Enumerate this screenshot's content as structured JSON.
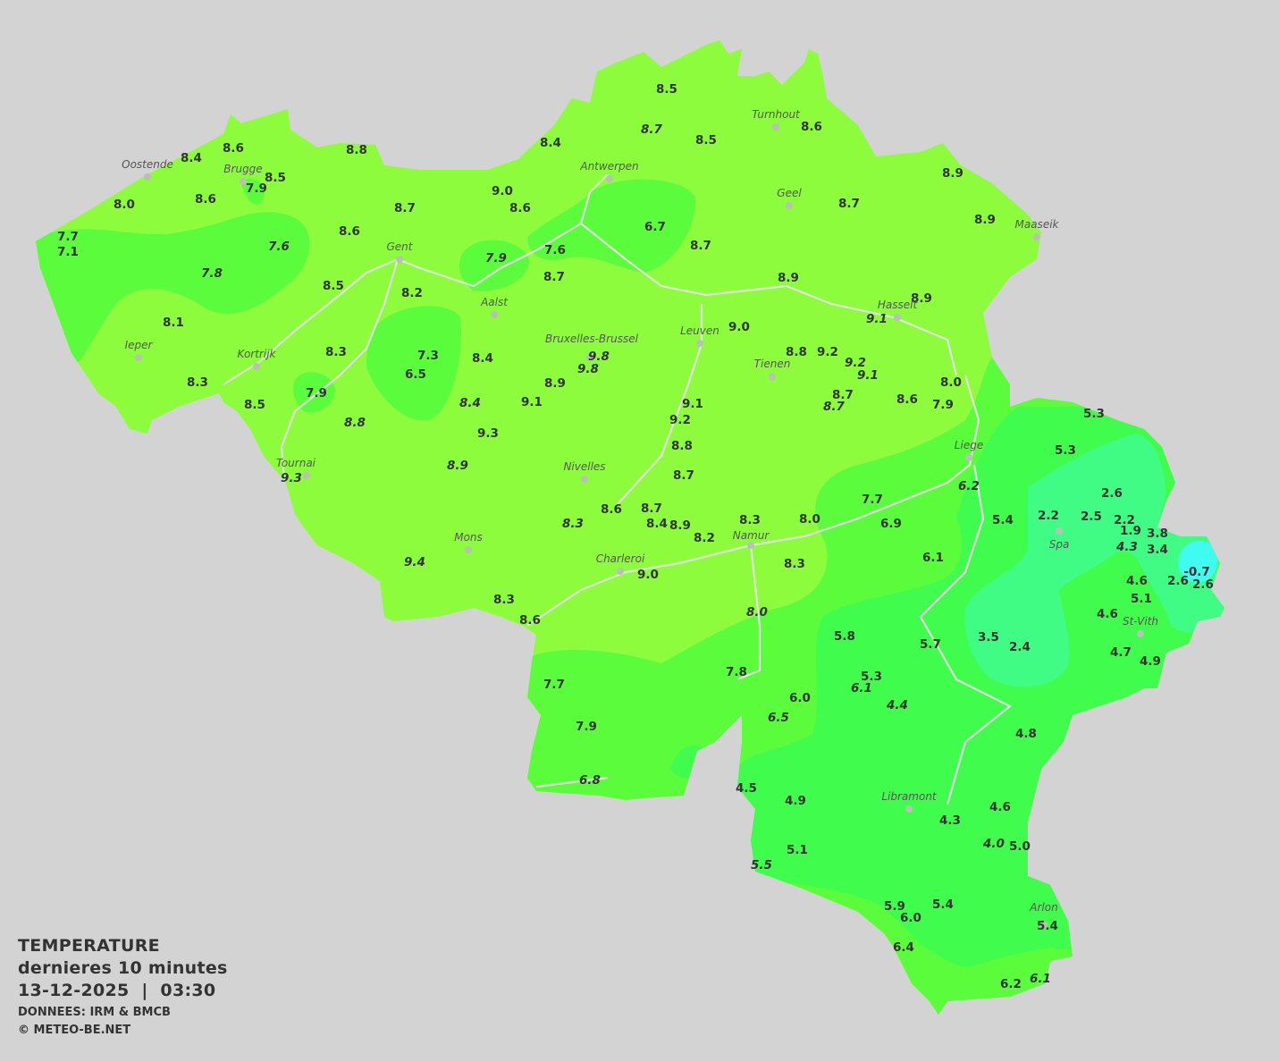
{
  "legend": {
    "title": "TEMPERATURE",
    "period": "dernieres 10 minutes",
    "datetime": "13-12-2025  |  03:30",
    "source": "DONNEES: IRM & BMCB",
    "copyright": "© METEO-BE.NET"
  },
  "colors": {
    "background": "#d3d3d3",
    "zone_8_10": "#8cfc3c",
    "zone_6_8": "#5afc3c",
    "zone_4_6": "#40fc4c",
    "zone_2_4": "#40fc84",
    "zone_below_0": "#40fcf0",
    "rivers": "#e6e6e6"
  },
  "cities": [
    "Oostende",
    "Brugge",
    "Gent",
    "Antwerpen",
    "Turnhout",
    "Geel",
    "Maaseik",
    "Hasselt",
    "Aalst",
    "Ieper",
    "Kortrijk",
    "Bruxelles-Brussel",
    "Leuven",
    "Tienen",
    "Tournai",
    "Liege",
    "Nivelles",
    "Spa",
    "Mons",
    "Namur",
    "Charleroi",
    "St-Vith",
    "Libramont",
    "Arlon"
  ],
  "stations": [
    {
      "v": "8.5"
    },
    {
      "v": "8.7",
      "i": true
    },
    {
      "v": "8.5"
    },
    {
      "v": "8.6"
    },
    {
      "v": "8.4"
    },
    {
      "v": "8.8"
    },
    {
      "v": "8.6"
    },
    {
      "v": "8.4"
    },
    {
      "v": "8.5"
    },
    {
      "v": "7.9"
    },
    {
      "v": "8.6"
    },
    {
      "v": "8.0"
    },
    {
      "v": "9.0"
    },
    {
      "v": "8.6"
    },
    {
      "v": "8.7"
    },
    {
      "v": "8.7"
    },
    {
      "v": "8.9"
    },
    {
      "v": "8.9"
    },
    {
      "v": "7.7"
    },
    {
      "v": "7.1"
    },
    {
      "v": "7.6",
      "i": true
    },
    {
      "v": "7.8",
      "i": true
    },
    {
      "v": "8.6"
    },
    {
      "v": "6.7"
    },
    {
      "v": "8.7"
    },
    {
      "v": "7.6"
    },
    {
      "v": "7.9",
      "i": true
    },
    {
      "v": "8.7"
    },
    {
      "v": "8.9"
    },
    {
      "v": "8.9"
    },
    {
      "v": "9.1",
      "i": true
    },
    {
      "v": "8.5"
    },
    {
      "v": "8.2"
    },
    {
      "v": "8.1"
    },
    {
      "v": "9.0"
    },
    {
      "v": "8.3"
    },
    {
      "v": "7.3"
    },
    {
      "v": "8.4"
    },
    {
      "v": "9.8",
      "i": true
    },
    {
      "v": "9.8",
      "i": true
    },
    {
      "v": "8.8"
    },
    {
      "v": "9.2"
    },
    {
      "v": "9.2",
      "i": true
    },
    {
      "v": "9.1",
      "i": true
    },
    {
      "v": "8.3"
    },
    {
      "v": "6.5"
    },
    {
      "v": "8.9"
    },
    {
      "v": "7.9"
    },
    {
      "v": "8.0"
    },
    {
      "v": "8.7"
    },
    {
      "v": "8.7",
      "i": true
    },
    {
      "v": "8.6"
    },
    {
      "v": "7.9"
    },
    {
      "v": "9.1"
    },
    {
      "v": "8.5"
    },
    {
      "v": "8.4",
      "i": true
    },
    {
      "v": "9.1"
    },
    {
      "v": "8.8",
      "i": true
    },
    {
      "v": "9.2"
    },
    {
      "v": "9.3"
    },
    {
      "v": "8.8"
    },
    {
      "v": "5.3"
    },
    {
      "v": "5.3"
    },
    {
      "v": "8.9",
      "i": true
    },
    {
      "v": "9.3",
      "i": true
    },
    {
      "v": "8.7"
    },
    {
      "v": "6.2",
      "i": true
    },
    {
      "v": "2.6"
    },
    {
      "v": "7.7"
    },
    {
      "v": "8.6"
    },
    {
      "v": "8.7"
    },
    {
      "v": "5.4"
    },
    {
      "v": "2.2"
    },
    {
      "v": "2.5"
    },
    {
      "v": "2.2"
    },
    {
      "v": "8.3",
      "i": true
    },
    {
      "v": "8.4"
    },
    {
      "v": "8.9"
    },
    {
      "v": "8.3"
    },
    {
      "v": "8.0"
    },
    {
      "v": "6.9"
    },
    {
      "v": "1.9"
    },
    {
      "v": "3.8"
    },
    {
      "v": "8.2"
    },
    {
      "v": "4.3",
      "i": true
    },
    {
      "v": "3.4"
    },
    {
      "v": "9.4",
      "i": true
    },
    {
      "v": "8.3"
    },
    {
      "v": "6.1"
    },
    {
      "v": "-0.7"
    },
    {
      "v": "4.6"
    },
    {
      "v": "2.6"
    },
    {
      "v": "2.6"
    },
    {
      "v": "9.0"
    },
    {
      "v": "5.1"
    },
    {
      "v": "8.3"
    },
    {
      "v": "8.6"
    },
    {
      "v": "8.0",
      "i": true
    },
    {
      "v": "4.6"
    },
    {
      "v": "5.8"
    },
    {
      "v": "5.7"
    },
    {
      "v": "3.5"
    },
    {
      "v": "2.4"
    },
    {
      "v": "4.7"
    },
    {
      "v": "4.9"
    },
    {
      "v": "7.8"
    },
    {
      "v": "5.3"
    },
    {
      "v": "6.1",
      "i": true
    },
    {
      "v": "7.7"
    },
    {
      "v": "4.4",
      "i": true
    },
    {
      "v": "6.0"
    },
    {
      "v": "6.5",
      "i": true
    },
    {
      "v": "7.9"
    },
    {
      "v": "4.8"
    },
    {
      "v": "6.8",
      "i": true
    },
    {
      "v": "4.5"
    },
    {
      "v": "4.9"
    },
    {
      "v": "4.6"
    },
    {
      "v": "4.3"
    },
    {
      "v": "4.0",
      "i": true
    },
    {
      "v": "5.0"
    },
    {
      "v": "5.1"
    },
    {
      "v": "5.5",
      "i": true
    },
    {
      "v": "5.9"
    },
    {
      "v": "5.4"
    },
    {
      "v": "6.0"
    },
    {
      "v": "5.4"
    },
    {
      "v": "6.4"
    },
    {
      "v": "6.2"
    },
    {
      "v": "6.1",
      "i": true
    }
  ]
}
